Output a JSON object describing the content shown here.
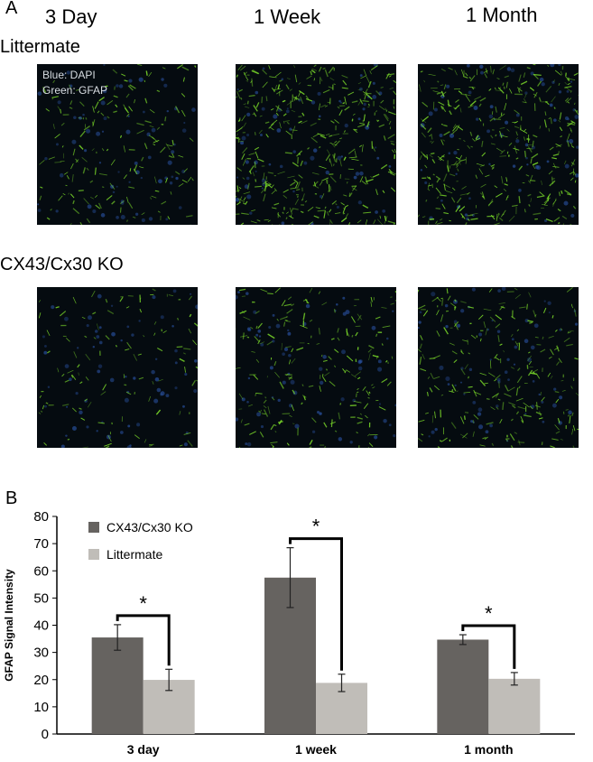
{
  "panel_a": {
    "letter": "A",
    "columns": [
      "3 Day",
      "1 Week",
      "1 Month"
    ],
    "rows": [
      "Littermate",
      "CX43/Cx30 KO"
    ],
    "stain_legend": [
      "Blue: DAPI",
      "Green: GFAP"
    ],
    "stain_colors": {
      "dapi": "#2b55a8",
      "gfap": "#7ee02a"
    }
  },
  "panel_b": {
    "letter": "B"
  },
  "chart_data": {
    "type": "bar",
    "categories": [
      "3 day",
      "1 week",
      "1 month"
    ],
    "series": [
      {
        "name": "CX43/Cx30 KO",
        "values": [
          35.5,
          57.5,
          34.7
        ],
        "errors": [
          4.7,
          11.0,
          1.8
        ],
        "color": "#666360"
      },
      {
        "name": "Littermate",
        "values": [
          19.9,
          18.8,
          20.3
        ],
        "errors": [
          3.9,
          3.2,
          2.3
        ],
        "color": "#c0bdb8"
      }
    ],
    "significance": [
      "*",
      "*",
      "*"
    ],
    "ylabel": "GFAP Signal Intensity",
    "ylim": [
      0,
      80
    ],
    "yticks": [
      0,
      10,
      20,
      30,
      40,
      50,
      60,
      70,
      80
    ],
    "grid": false,
    "legend": "top-left"
  }
}
